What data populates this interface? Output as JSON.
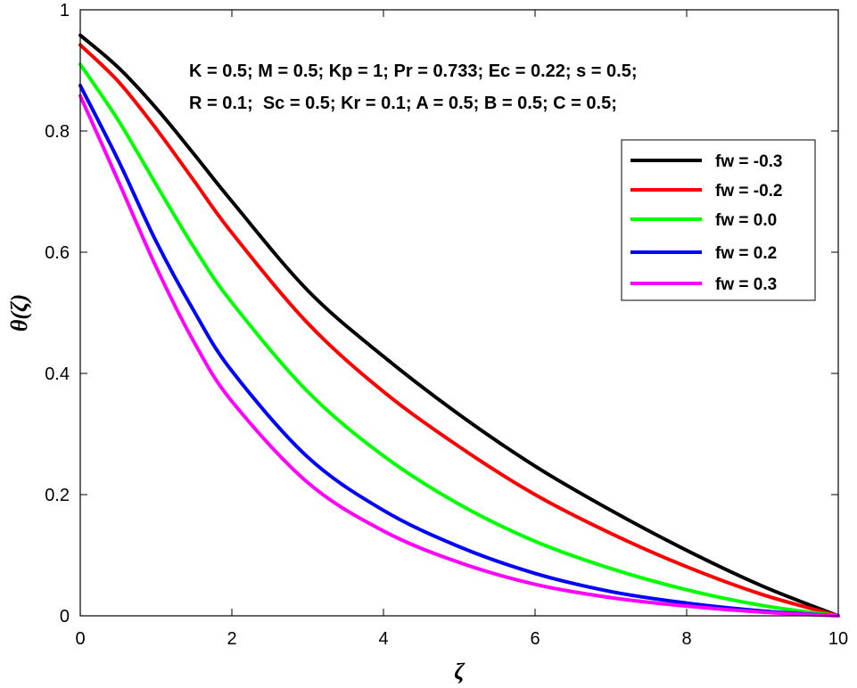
{
  "chart_data": {
    "type": "line",
    "title": "",
    "xlabel": "ζ",
    "ylabel": "θ(ζ)",
    "xlim": [
      0,
      10
    ],
    "ylim": [
      0,
      1
    ],
    "xticks": [
      0,
      2,
      4,
      6,
      8,
      10
    ],
    "yticks": [
      0,
      0.2,
      0.4,
      0.6,
      0.8,
      1
    ],
    "xtick_labels": [
      "0",
      "2",
      "4",
      "6",
      "8",
      "10"
    ],
    "ytick_labels": [
      "0",
      "0.2",
      "0.4",
      "0.6",
      "0.8",
      "1"
    ],
    "grid": false,
    "legend_position": "top-right",
    "annotations": [
      "K = 0.5; M = 0.5; Kp = 1; Pr = 0.733; Ec = 0.22; s = 0.5;",
      "R = 0.1;  Sc = 0.5; Kr = 0.1; A = 0.5; B = 0.5; C = 0.5;"
    ],
    "x": [
      0,
      0.5,
      1,
      1.5,
      2,
      3,
      4,
      5,
      6,
      7,
      8,
      9,
      10
    ],
    "series": [
      {
        "name": "fw = -0.3",
        "color": "#000000",
        "values": [
          0.958,
          0.905,
          0.838,
          0.762,
          0.684,
          0.537,
          0.428,
          0.332,
          0.247,
          0.174,
          0.108,
          0.049,
          0.0
        ]
      },
      {
        "name": "fw = -0.2",
        "color": "#ff0000",
        "values": [
          0.942,
          0.882,
          0.804,
          0.718,
          0.632,
          0.483,
          0.37,
          0.279,
          0.2,
          0.136,
          0.081,
          0.035,
          0.0
        ]
      },
      {
        "name": "fw = 0.0",
        "color": "#00ff00",
        "values": [
          0.91,
          0.818,
          0.712,
          0.608,
          0.517,
          0.37,
          0.264,
          0.184,
          0.123,
          0.078,
          0.043,
          0.017,
          0.0
        ]
      },
      {
        "name": "fw = 0.2",
        "color": "#0000ff",
        "values": [
          0.875,
          0.752,
          0.618,
          0.503,
          0.404,
          0.262,
          0.174,
          0.114,
          0.07,
          0.04,
          0.021,
          0.008,
          0.0
        ]
      },
      {
        "name": "fw = 0.3",
        "color": "#ff00ff",
        "values": [
          0.858,
          0.718,
          0.576,
          0.452,
          0.354,
          0.22,
          0.14,
          0.088,
          0.052,
          0.03,
          0.016,
          0.006,
          0.0
        ]
      }
    ]
  }
}
